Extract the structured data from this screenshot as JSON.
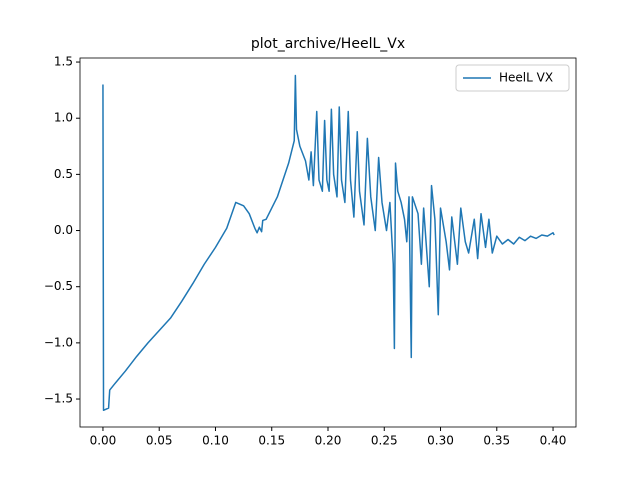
{
  "chart_data": {
    "type": "line",
    "title": "plot_archive/HeelL_Vx",
    "x": [
      0,
      0.0005,
      0.005,
      0.006,
      0.01,
      0.02,
      0.03,
      0.04,
      0.05,
      0.06,
      0.07,
      0.08,
      0.09,
      0.1,
      0.11,
      0.118,
      0.125,
      0.13,
      0.135,
      0.137,
      0.139,
      0.141,
      0.142,
      0.145,
      0.15,
      0.155,
      0.16,
      0.165,
      0.168,
      0.17,
      0.171,
      0.172,
      0.175,
      0.18,
      0.183,
      0.185,
      0.187,
      0.19,
      0.192,
      0.195,
      0.197,
      0.199,
      0.201,
      0.203,
      0.205,
      0.208,
      0.21,
      0.212,
      0.215,
      0.218,
      0.22,
      0.223,
      0.226,
      0.228,
      0.232,
      0.235,
      0.238,
      0.242,
      0.245,
      0.248,
      0.252,
      0.255,
      0.258,
      0.259,
      0.26,
      0.262,
      0.265,
      0.268,
      0.27,
      0.272,
      0.274,
      0.275,
      0.28,
      0.283,
      0.285,
      0.29,
      0.292,
      0.295,
      0.298,
      0.3,
      0.305,
      0.308,
      0.31,
      0.315,
      0.318,
      0.322,
      0.325,
      0.33,
      0.333,
      0.336,
      0.34,
      0.343,
      0.346,
      0.35,
      0.355,
      0.36,
      0.365,
      0.37,
      0.375,
      0.38,
      0.385,
      0.39,
      0.395,
      0.4,
      0.401
    ],
    "series": [
      {
        "name": "HeelL VX",
        "color": "#1f77b4",
        "values": [
          1.3,
          -1.6,
          -1.58,
          -1.42,
          -1.37,
          -1.25,
          -1.12,
          -1.0,
          -0.89,
          -0.78,
          -0.63,
          -0.47,
          -0.3,
          -0.15,
          0.02,
          0.25,
          0.22,
          0.15,
          0.02,
          -0.02,
          0.03,
          -0.01,
          0.09,
          0.1,
          0.2,
          0.3,
          0.45,
          0.6,
          0.72,
          0.8,
          1.38,
          0.9,
          0.75,
          0.62,
          0.45,
          0.7,
          0.4,
          1.06,
          0.45,
          0.35,
          0.98,
          0.45,
          0.35,
          1.08,
          0.5,
          0.3,
          1.1,
          0.45,
          0.25,
          1.06,
          0.45,
          0.12,
          0.88,
          0.35,
          0.05,
          0.82,
          0.3,
          0.0,
          0.65,
          0.25,
          0.0,
          0.25,
          -0.3,
          -1.05,
          0.6,
          0.35,
          0.25,
          0.1,
          -0.1,
          0.3,
          -1.13,
          0.3,
          0.15,
          -0.3,
          0.2,
          -0.5,
          0.4,
          0.1,
          -0.75,
          0.2,
          -0.1,
          -0.35,
          0.12,
          -0.3,
          0.2,
          -0.1,
          -0.2,
          0.1,
          -0.25,
          0.15,
          -0.15,
          0.1,
          -0.2,
          -0.05,
          -0.12,
          -0.08,
          -0.12,
          -0.06,
          -0.09,
          -0.05,
          -0.07,
          -0.04,
          -0.05,
          -0.02,
          -0.04
        ]
      }
    ],
    "xlim": [
      -0.0204,
      0.4204
    ],
    "ylim": [
      -1.749,
      1.536
    ],
    "xticks": [
      {
        "value": 0,
        "label": "0.00"
      },
      {
        "value": 0.05,
        "label": "0.05"
      },
      {
        "value": 0.1,
        "label": "0.10"
      },
      {
        "value": 0.15,
        "label": "0.15"
      },
      {
        "value": 0.2,
        "label": "0.20"
      },
      {
        "value": 0.25,
        "label": "0.25"
      },
      {
        "value": 0.3,
        "label": "0.30"
      },
      {
        "value": 0.35,
        "label": "0.35"
      },
      {
        "value": 0.4,
        "label": "0.40"
      }
    ],
    "yticks": [
      {
        "value": -1.5,
        "label": "−1.5"
      },
      {
        "value": -1,
        "label": "−1.0"
      },
      {
        "value": -0.5,
        "label": "−0.5"
      },
      {
        "value": 0,
        "label": "0.0"
      },
      {
        "value": 0.5,
        "label": "0.5"
      },
      {
        "value": 1,
        "label": "1.0"
      },
      {
        "value": 1.5,
        "label": "1.5"
      }
    ],
    "legend": "upper right"
  }
}
